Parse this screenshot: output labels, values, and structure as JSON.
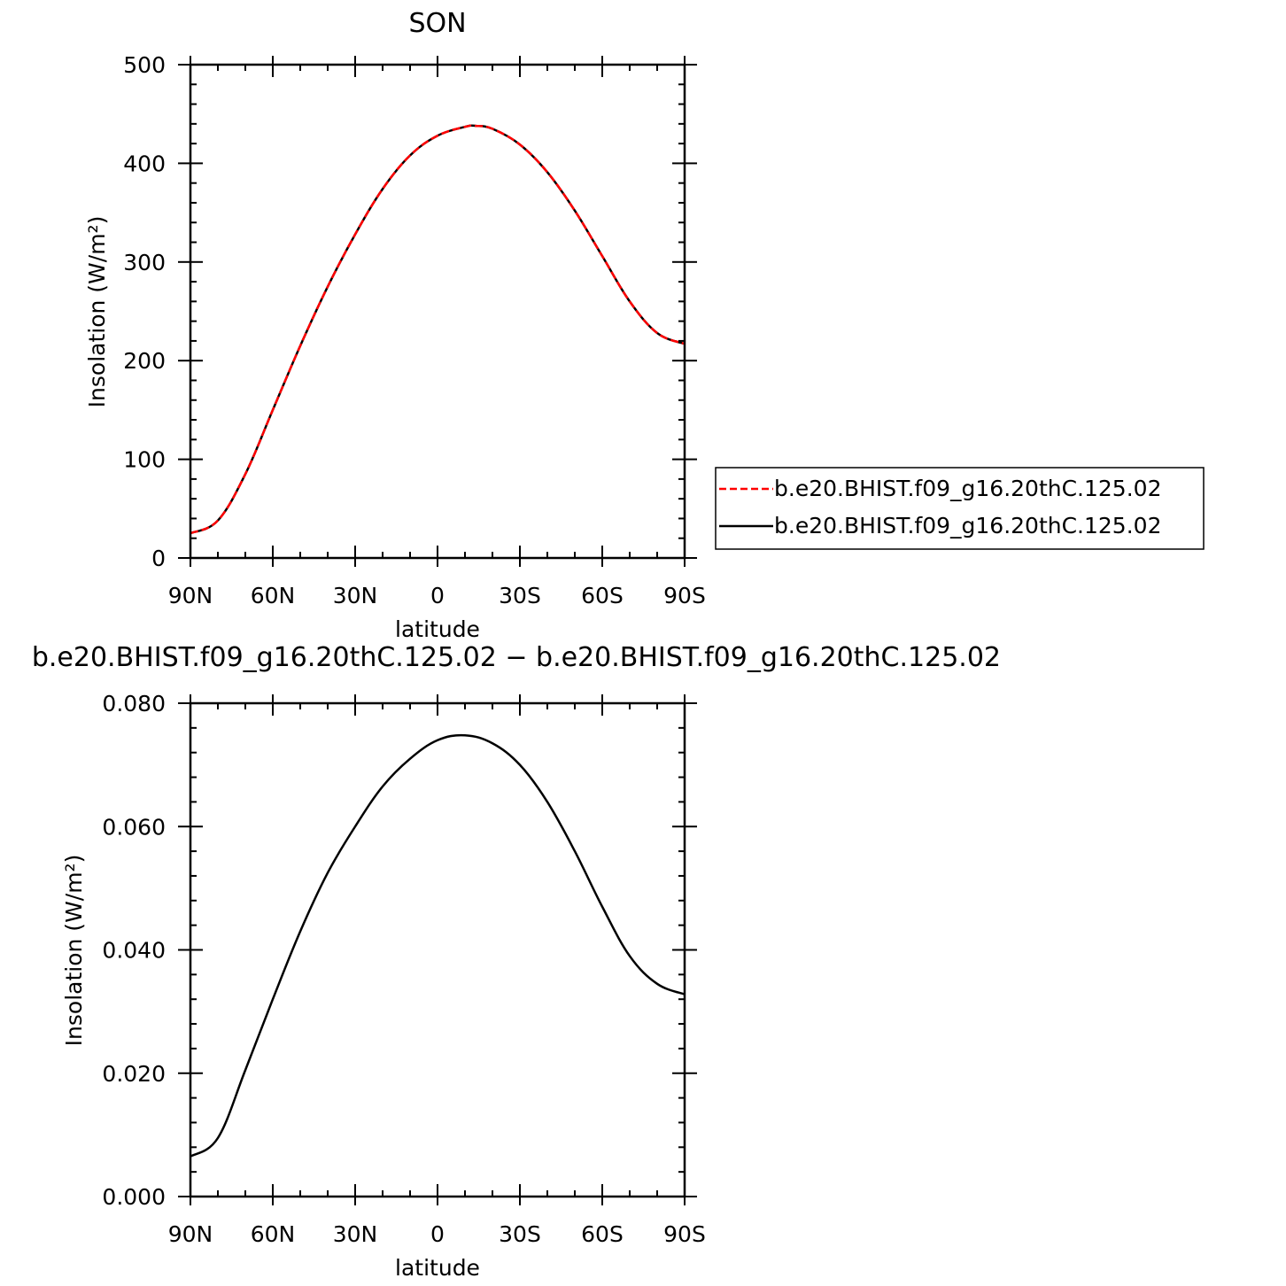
{
  "chart_data": [
    {
      "type": "line",
      "title": "SON",
      "xlabel": "latitude",
      "ylabel": "Insolation  (W/m²)",
      "xlim": [
        -90,
        90
      ],
      "ylim": [
        0,
        500
      ],
      "xticks": {
        "values": [
          -90,
          -60,
          -30,
          0,
          30,
          60,
          90
        ],
        "labels": [
          "90N",
          "60N",
          "30N",
          "0",
          "30S",
          "60S",
          "90S"
        ]
      },
      "yticks": {
        "values": [
          0,
          100,
          200,
          300,
          400,
          500
        ],
        "labels": [
          "0",
          "100",
          "200",
          "300",
          "400",
          "500"
        ]
      },
      "grid": false,
      "legend_placement": "right",
      "series": [
        {
          "name": "b.e20.BHIST.f09_g16.20thC.125.02",
          "color": "#ff0000",
          "style": "dashed",
          "x": [
            -90,
            -80,
            -70,
            -60,
            -50,
            -40,
            -30,
            -20,
            -10,
            0,
            10,
            14,
            20,
            30,
            40,
            50,
            60,
            70,
            80,
            90
          ],
          "values": [
            25,
            38,
            85,
            150,
            215,
            275,
            328,
            374,
            408,
            428,
            437,
            438,
            435,
            419,
            391,
            352,
            306,
            260,
            228,
            217
          ]
        },
        {
          "name": "b.e20.BHIST.f09_g16.20thC.125.02",
          "color": "#000000",
          "style": "solid",
          "x": [
            -90,
            -80,
            -70,
            -60,
            -50,
            -40,
            -30,
            -20,
            -10,
            0,
            10,
            14,
            20,
            30,
            40,
            50,
            60,
            70,
            80,
            90
          ],
          "values": [
            25,
            38,
            85,
            150,
            215,
            275,
            328,
            374,
            408,
            428,
            437,
            438,
            435,
            419,
            391,
            352,
            306,
            260,
            228,
            217
          ]
        }
      ]
    },
    {
      "type": "line",
      "title": "b.e20.BHIST.f09_g16.20thC.125.02 − b.e20.BHIST.f09_g16.20thC.125.02",
      "xlabel": "latitude",
      "ylabel": "Insolation  (W/m²)",
      "xlim": [
        -90,
        90
      ],
      "ylim": [
        0,
        0.08
      ],
      "xticks": {
        "values": [
          -90,
          -60,
          -30,
          0,
          30,
          60,
          90
        ],
        "labels": [
          "90N",
          "60N",
          "30N",
          "0",
          "30S",
          "60S",
          "90S"
        ]
      },
      "yticks": {
        "values": [
          0,
          0.02,
          0.04,
          0.06,
          0.08
        ],
        "labels": [
          "0.000",
          "0.020",
          "0.040",
          "0.060",
          "0.080"
        ]
      },
      "grid": false,
      "series": [
        {
          "color": "#000000",
          "style": "solid",
          "x": [
            -90,
            -80,
            -70,
            -60,
            -50,
            -40,
            -30,
            -20,
            -10,
            0,
            10,
            20,
            30,
            40,
            50,
            60,
            70,
            80,
            90
          ],
          "values": [
            0.0065,
            0.0095,
            0.0205,
            0.032,
            0.043,
            0.0525,
            0.06,
            0.0665,
            0.071,
            0.074,
            0.0748,
            0.0735,
            0.07,
            0.064,
            0.056,
            0.047,
            0.039,
            0.0345,
            0.0328
          ]
        }
      ]
    }
  ]
}
